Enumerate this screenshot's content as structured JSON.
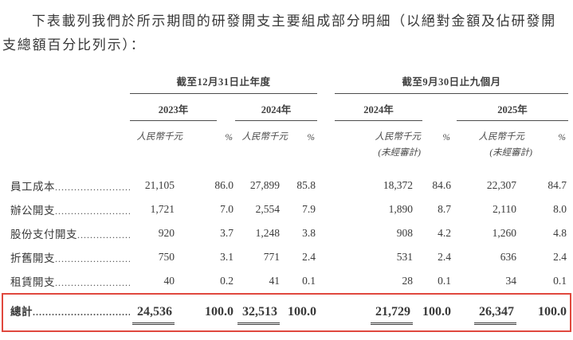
{
  "colors": {
    "highlight": "#e0483e",
    "rule": "#4c4c4c",
    "text": "#3a3a3a"
  },
  "intro": {
    "line1": "下表載列我們於所示期間的研發開支主要組成部分明細（以絕對金額及佔研發開",
    "line2": "支總額百分比列示）："
  },
  "table": {
    "col_groups": [
      {
        "title": "截至12月31日止年度",
        "years": [
          "2023年",
          "2024年"
        ]
      },
      {
        "title": "截至9月30日止九個月",
        "years": [
          "2024年",
          "2025年"
        ]
      }
    ],
    "unit_label": "人民幣千元",
    "pct_label": "%",
    "unaudited_label": "(未經審計)",
    "rows": [
      {
        "label": "員工成本",
        "values": [
          "21,105",
          "86.0",
          "27,899",
          "85.8",
          "18,372",
          "84.6",
          "22,307",
          "84.7"
        ]
      },
      {
        "label": "辦公開支",
        "values": [
          "1,721",
          "7.0",
          "2,554",
          "7.9",
          "1,890",
          "8.7",
          "2,110",
          "8.0"
        ]
      },
      {
        "label": "股份支付開支",
        "values": [
          "920",
          "3.7",
          "1,248",
          "3.8",
          "908",
          "4.2",
          "1,260",
          "4.8"
        ]
      },
      {
        "label": "折舊開支",
        "values": [
          "750",
          "3.1",
          "771",
          "2.4",
          "531",
          "2.4",
          "636",
          "2.4"
        ]
      },
      {
        "label": "租賃開支",
        "values": [
          "40",
          "0.2",
          "41",
          "0.1",
          "28",
          "0.1",
          "34",
          "0.1"
        ]
      }
    ],
    "total": {
      "label": "總計",
      "values": [
        "24,536",
        "100.0",
        "32,513",
        "100.0",
        "21,729",
        "100.0",
        "26,347",
        "100.0"
      ]
    }
  }
}
